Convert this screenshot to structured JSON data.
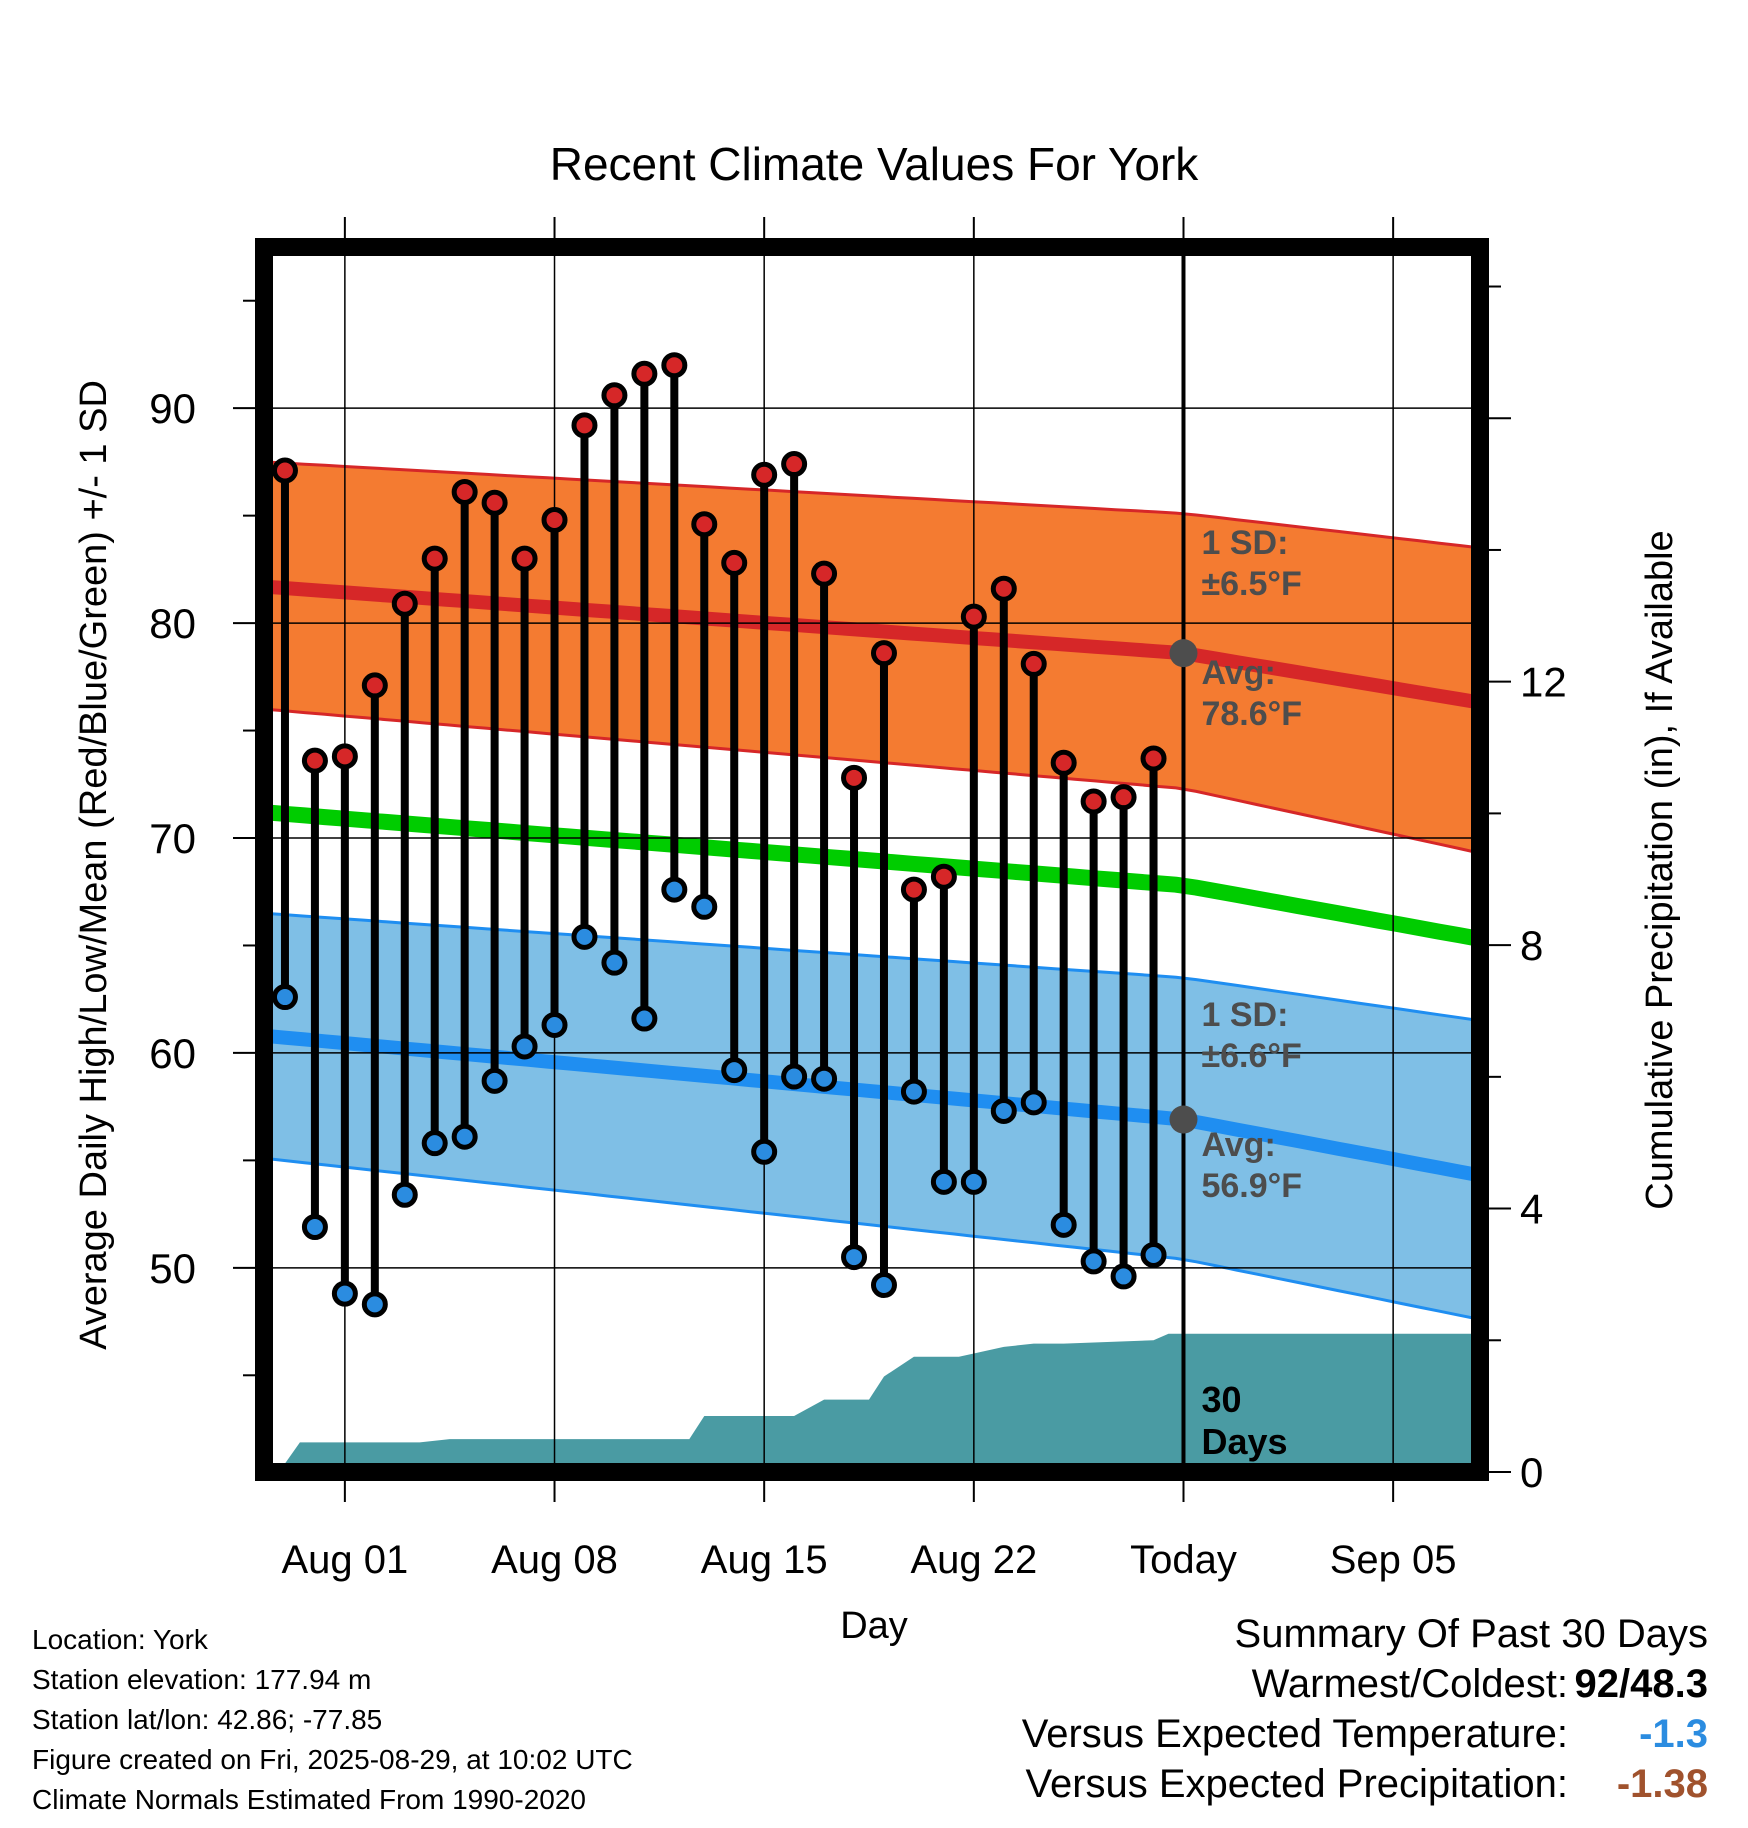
{
  "chart_data": {
    "type": "line",
    "title": "Recent Climate Values For York",
    "xlabel": "Day",
    "ylabel": "Average Daily High/Low/Mean (Red/Blue/Green) +/- 1 SD",
    "y2label": "Cumulative Precipitation (in), If Available",
    "ylim": [
      40.5,
      97.5
    ],
    "y2lim": [
      0,
      18.6
    ],
    "y_ticks": [
      "50",
      "60",
      "70",
      "80",
      "90"
    ],
    "y2_ticks": [
      "0",
      "4",
      "8",
      "12"
    ],
    "x_tick_labels": [
      "Aug 01",
      "Aug 08",
      "Aug 15",
      "Aug 22",
      "Today",
      "Sep 05"
    ],
    "x_tick_days": [
      1,
      8,
      15,
      22,
      29,
      36
    ],
    "xlim": [
      -1.7,
      38.9
    ],
    "today_day": 29,
    "grid": true,
    "normals": {
      "day": [
        -1.7,
        29,
        38.9
      ],
      "avg_high": [
        81.7,
        78.6,
        76.3
      ],
      "high_sd_upper": [
        87.5,
        85.1,
        83.5
      ],
      "high_sd_lower": [
        76.0,
        72.3,
        69.3
      ],
      "avg_mean": [
        71.2,
        67.8,
        65.3
      ],
      "avg_low": [
        60.8,
        56.9,
        54.3
      ],
      "low_sd_upper": [
        66.5,
        63.5,
        61.5
      ],
      "low_sd_lower": [
        55.1,
        50.4,
        47.6
      ]
    },
    "annotations": {
      "high_sd_label": "1 SD:",
      "high_sd_value": "±6.5°F",
      "high_avg_label": "Avg:",
      "high_avg_value": "78.6°F",
      "low_sd_label": "1 SD:",
      "low_sd_value": "±6.6°F",
      "low_avg_label": "Avg:",
      "low_avg_value": "56.9°F",
      "window_label_line1": "30",
      "window_label_line2": "Days"
    },
    "series": [
      {
        "name": "High",
        "color": "#d62728",
        "days": [
          -1,
          0,
          1,
          2,
          3,
          4,
          5,
          6,
          7,
          8,
          9,
          10,
          11,
          12,
          13,
          14,
          15,
          16,
          17,
          18,
          19,
          20,
          21,
          22,
          23,
          24,
          25,
          26,
          27,
          28
        ],
        "values": [
          87.1,
          73.6,
          73.8,
          77.1,
          80.9,
          83.0,
          86.1,
          85.6,
          83.0,
          84.8,
          89.2,
          90.6,
          91.6,
          92.0,
          84.6,
          82.8,
          86.9,
          87.4,
          82.3,
          72.8,
          78.6,
          67.6,
          68.2,
          80.3,
          81.6,
          78.1,
          73.5,
          71.7,
          71.9,
          73.7
        ]
      },
      {
        "name": "Low",
        "color": "#2b8ce0",
        "days": [
          -1,
          0,
          1,
          2,
          3,
          4,
          5,
          6,
          7,
          8,
          9,
          10,
          11,
          12,
          13,
          14,
          15,
          16,
          17,
          18,
          19,
          20,
          21,
          22,
          23,
          24,
          25,
          26,
          27,
          28
        ],
        "values": [
          62.6,
          51.9,
          48.8,
          48.3,
          53.4,
          55.8,
          56.1,
          58.7,
          60.3,
          61.3,
          65.4,
          64.2,
          61.6,
          67.6,
          66.8,
          59.2,
          55.4,
          58.9,
          58.8,
          50.5,
          49.2,
          58.2,
          54.0,
          54.0,
          57.3,
          57.7,
          52.0,
          50.3,
          49.6,
          50.6
        ]
      },
      {
        "name": "Cumulative Precipitation",
        "color": "#4a9ba3",
        "days": [
          -1.2,
          -0.5,
          3.5,
          4.5,
          12.5,
          13,
          16,
          17,
          18.5,
          19,
          20,
          21.5,
          22,
          23,
          24,
          25,
          28,
          28.5,
          38.9
        ],
        "values": [
          0.0,
          0.45,
          0.45,
          0.5,
          0.5,
          0.85,
          0.85,
          1.1,
          1.1,
          1.45,
          1.75,
          1.75,
          1.8,
          1.9,
          1.95,
          1.95,
          2.0,
          2.1,
          2.1
        ]
      }
    ],
    "colors": {
      "high_band": "#f47b31",
      "high_line": "#d62728",
      "mean_line": "#00cc00",
      "low_band": "#7fbfe6",
      "low_line": "#1f8ef1",
      "precip": "#4a9ba3",
      "today_marker": "#4d4d4d",
      "annotation": "#4d4d4d"
    }
  },
  "footer": {
    "location": "Location: York",
    "elevation": "Station elevation: 177.94 m",
    "latlon": "Station lat/lon: 42.86; -77.85",
    "created": "Figure created on Fri, 2025-08-29, at 10:02 UTC",
    "normals_source": "Climate Normals Estimated From 1990-2020"
  },
  "summary": {
    "title": "Summary Of Past 30 Days",
    "warm_cold_label": "Warmest/Coldest:",
    "warm_cold_value": "92/48.3",
    "temp_label": "Versus Expected Temperature:",
    "temp_value": "-1.3",
    "temp_color": "#2b8ce0",
    "precip_label": "Versus Expected Precipitation:",
    "precip_value": "-1.38",
    "precip_color": "#a0522d"
  }
}
